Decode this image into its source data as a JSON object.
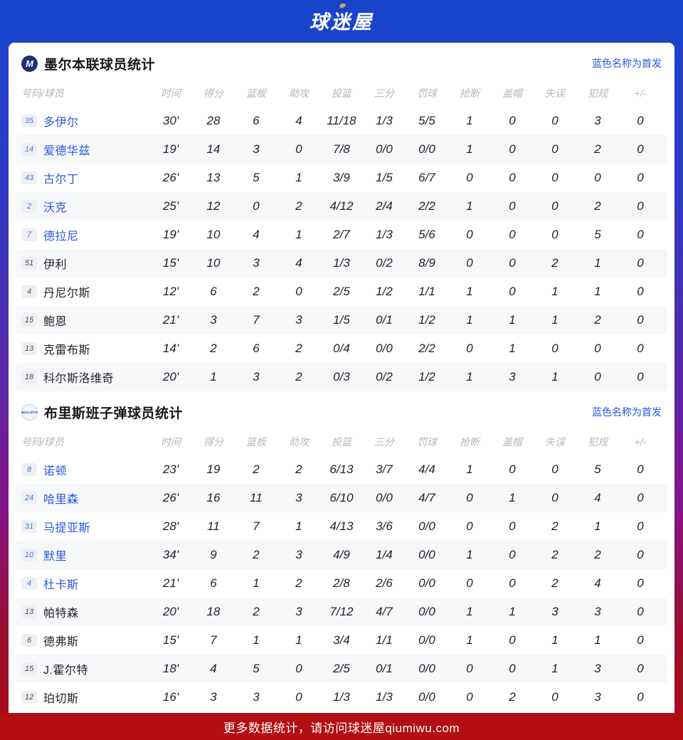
{
  "header": {
    "logo_text": "球迷屋"
  },
  "footer": {
    "text": "更多数据统计，请访问球迷屋qiumiwu.com"
  },
  "legend": "蓝色名称为首发",
  "columns": [
    "号码/球员",
    "时间",
    "得分",
    "篮板",
    "助攻",
    "投篮",
    "三分",
    "罚球",
    "抢断",
    "盖帽",
    "失误",
    "犯规",
    "+/-"
  ],
  "colors": {
    "header_blue": "#1843cb",
    "accent_blue": "#2857e2",
    "footer_red": "#b30e13",
    "row_alt": "#f6f7f9",
    "logo_gold": "#c9a15f"
  },
  "teams": [
    {
      "title": "墨尔本联球员统计",
      "logo": {
        "style": "melbourne",
        "text": "M"
      },
      "players": [
        {
          "number": "35",
          "name": "多伊尔",
          "starter": true,
          "stats": [
            "30'",
            "28",
            "6",
            "4",
            "11/18",
            "1/3",
            "5/5",
            "1",
            "0",
            "0",
            "3",
            "0"
          ]
        },
        {
          "number": "14",
          "name": "爱德华兹",
          "starter": true,
          "stats": [
            "19'",
            "14",
            "3",
            "0",
            "7/8",
            "0/0",
            "0/0",
            "1",
            "0",
            "0",
            "2",
            "0"
          ]
        },
        {
          "number": "43",
          "name": "古尔丁",
          "starter": true,
          "stats": [
            "26'",
            "13",
            "5",
            "1",
            "3/9",
            "1/5",
            "6/7",
            "0",
            "0",
            "0",
            "0",
            "0"
          ]
        },
        {
          "number": "2",
          "name": "沃克",
          "starter": true,
          "stats": [
            "25'",
            "12",
            "0",
            "2",
            "4/12",
            "2/4",
            "2/2",
            "1",
            "0",
            "0",
            "2",
            "0"
          ]
        },
        {
          "number": "7",
          "name": "德拉尼",
          "starter": true,
          "stats": [
            "19'",
            "10",
            "4",
            "1",
            "2/7",
            "1/3",
            "5/6",
            "0",
            "0",
            "0",
            "5",
            "0"
          ]
        },
        {
          "number": "51",
          "name": "伊利",
          "starter": false,
          "stats": [
            "15'",
            "10",
            "3",
            "4",
            "1/3",
            "0/2",
            "8/9",
            "0",
            "0",
            "2",
            "1",
            "0"
          ]
        },
        {
          "number": "4",
          "name": "丹尼尔斯",
          "starter": false,
          "stats": [
            "12'",
            "6",
            "2",
            "0",
            "2/5",
            "1/2",
            "1/1",
            "1",
            "0",
            "1",
            "1",
            "0"
          ]
        },
        {
          "number": "15",
          "name": "鲍恩",
          "starter": false,
          "stats": [
            "21'",
            "3",
            "7",
            "3",
            "1/5",
            "0/1",
            "1/2",
            "1",
            "1",
            "1",
            "2",
            "0"
          ]
        },
        {
          "number": "13",
          "name": "克雷布斯",
          "starter": false,
          "stats": [
            "14'",
            "2",
            "6",
            "2",
            "0/4",
            "0/0",
            "2/2",
            "0",
            "1",
            "0",
            "0",
            "0"
          ]
        },
        {
          "number": "18",
          "name": "科尔斯洛维奇",
          "starter": false,
          "stats": [
            "20'",
            "1",
            "3",
            "2",
            "0/3",
            "0/2",
            "1/2",
            "1",
            "3",
            "1",
            "0",
            "0"
          ]
        }
      ]
    },
    {
      "title": "布里斯班子弹球员统计",
      "logo": {
        "style": "bullets",
        "text": "BULLETS"
      },
      "players": [
        {
          "number": "8",
          "name": "诺顿",
          "starter": true,
          "stats": [
            "23'",
            "19",
            "2",
            "2",
            "6/13",
            "3/7",
            "4/4",
            "1",
            "0",
            "0",
            "5",
            "0"
          ]
        },
        {
          "number": "24",
          "name": "哈里森",
          "starter": true,
          "stats": [
            "26'",
            "16",
            "11",
            "3",
            "6/10",
            "0/0",
            "4/7",
            "0",
            "1",
            "0",
            "4",
            "0"
          ]
        },
        {
          "number": "31",
          "name": "马提亚斯",
          "starter": true,
          "stats": [
            "28'",
            "11",
            "7",
            "1",
            "4/13",
            "3/6",
            "0/0",
            "0",
            "0",
            "2",
            "1",
            "0"
          ]
        },
        {
          "number": "10",
          "name": "默里",
          "starter": true,
          "stats": [
            "34'",
            "9",
            "2",
            "3",
            "4/9",
            "1/4",
            "0/0",
            "1",
            "0",
            "2",
            "2",
            "0"
          ]
        },
        {
          "number": "4",
          "name": "杜卡斯",
          "starter": true,
          "stats": [
            "21'",
            "6",
            "1",
            "2",
            "2/8",
            "2/6",
            "0/0",
            "0",
            "0",
            "2",
            "4",
            "0"
          ]
        },
        {
          "number": "13",
          "name": "帕特森",
          "starter": false,
          "stats": [
            "20'",
            "18",
            "2",
            "3",
            "7/12",
            "4/7",
            "0/0",
            "1",
            "1",
            "3",
            "3",
            "0"
          ]
        },
        {
          "number": "6",
          "name": "德弗斯",
          "starter": false,
          "stats": [
            "15'",
            "7",
            "1",
            "1",
            "3/4",
            "1/1",
            "0/0",
            "1",
            "0",
            "1",
            "1",
            "0"
          ]
        },
        {
          "number": "15",
          "name": "J.霍尔特",
          "starter": false,
          "stats": [
            "18'",
            "4",
            "5",
            "0",
            "2/5",
            "0/1",
            "0/0",
            "0",
            "0",
            "1",
            "3",
            "0"
          ]
        },
        {
          "number": "12",
          "name": "珀切斯",
          "starter": false,
          "stats": [
            "16'",
            "3",
            "3",
            "0",
            "1/3",
            "1/3",
            "0/0",
            "0",
            "2",
            "0",
            "3",
            "0"
          ]
        }
      ]
    }
  ]
}
